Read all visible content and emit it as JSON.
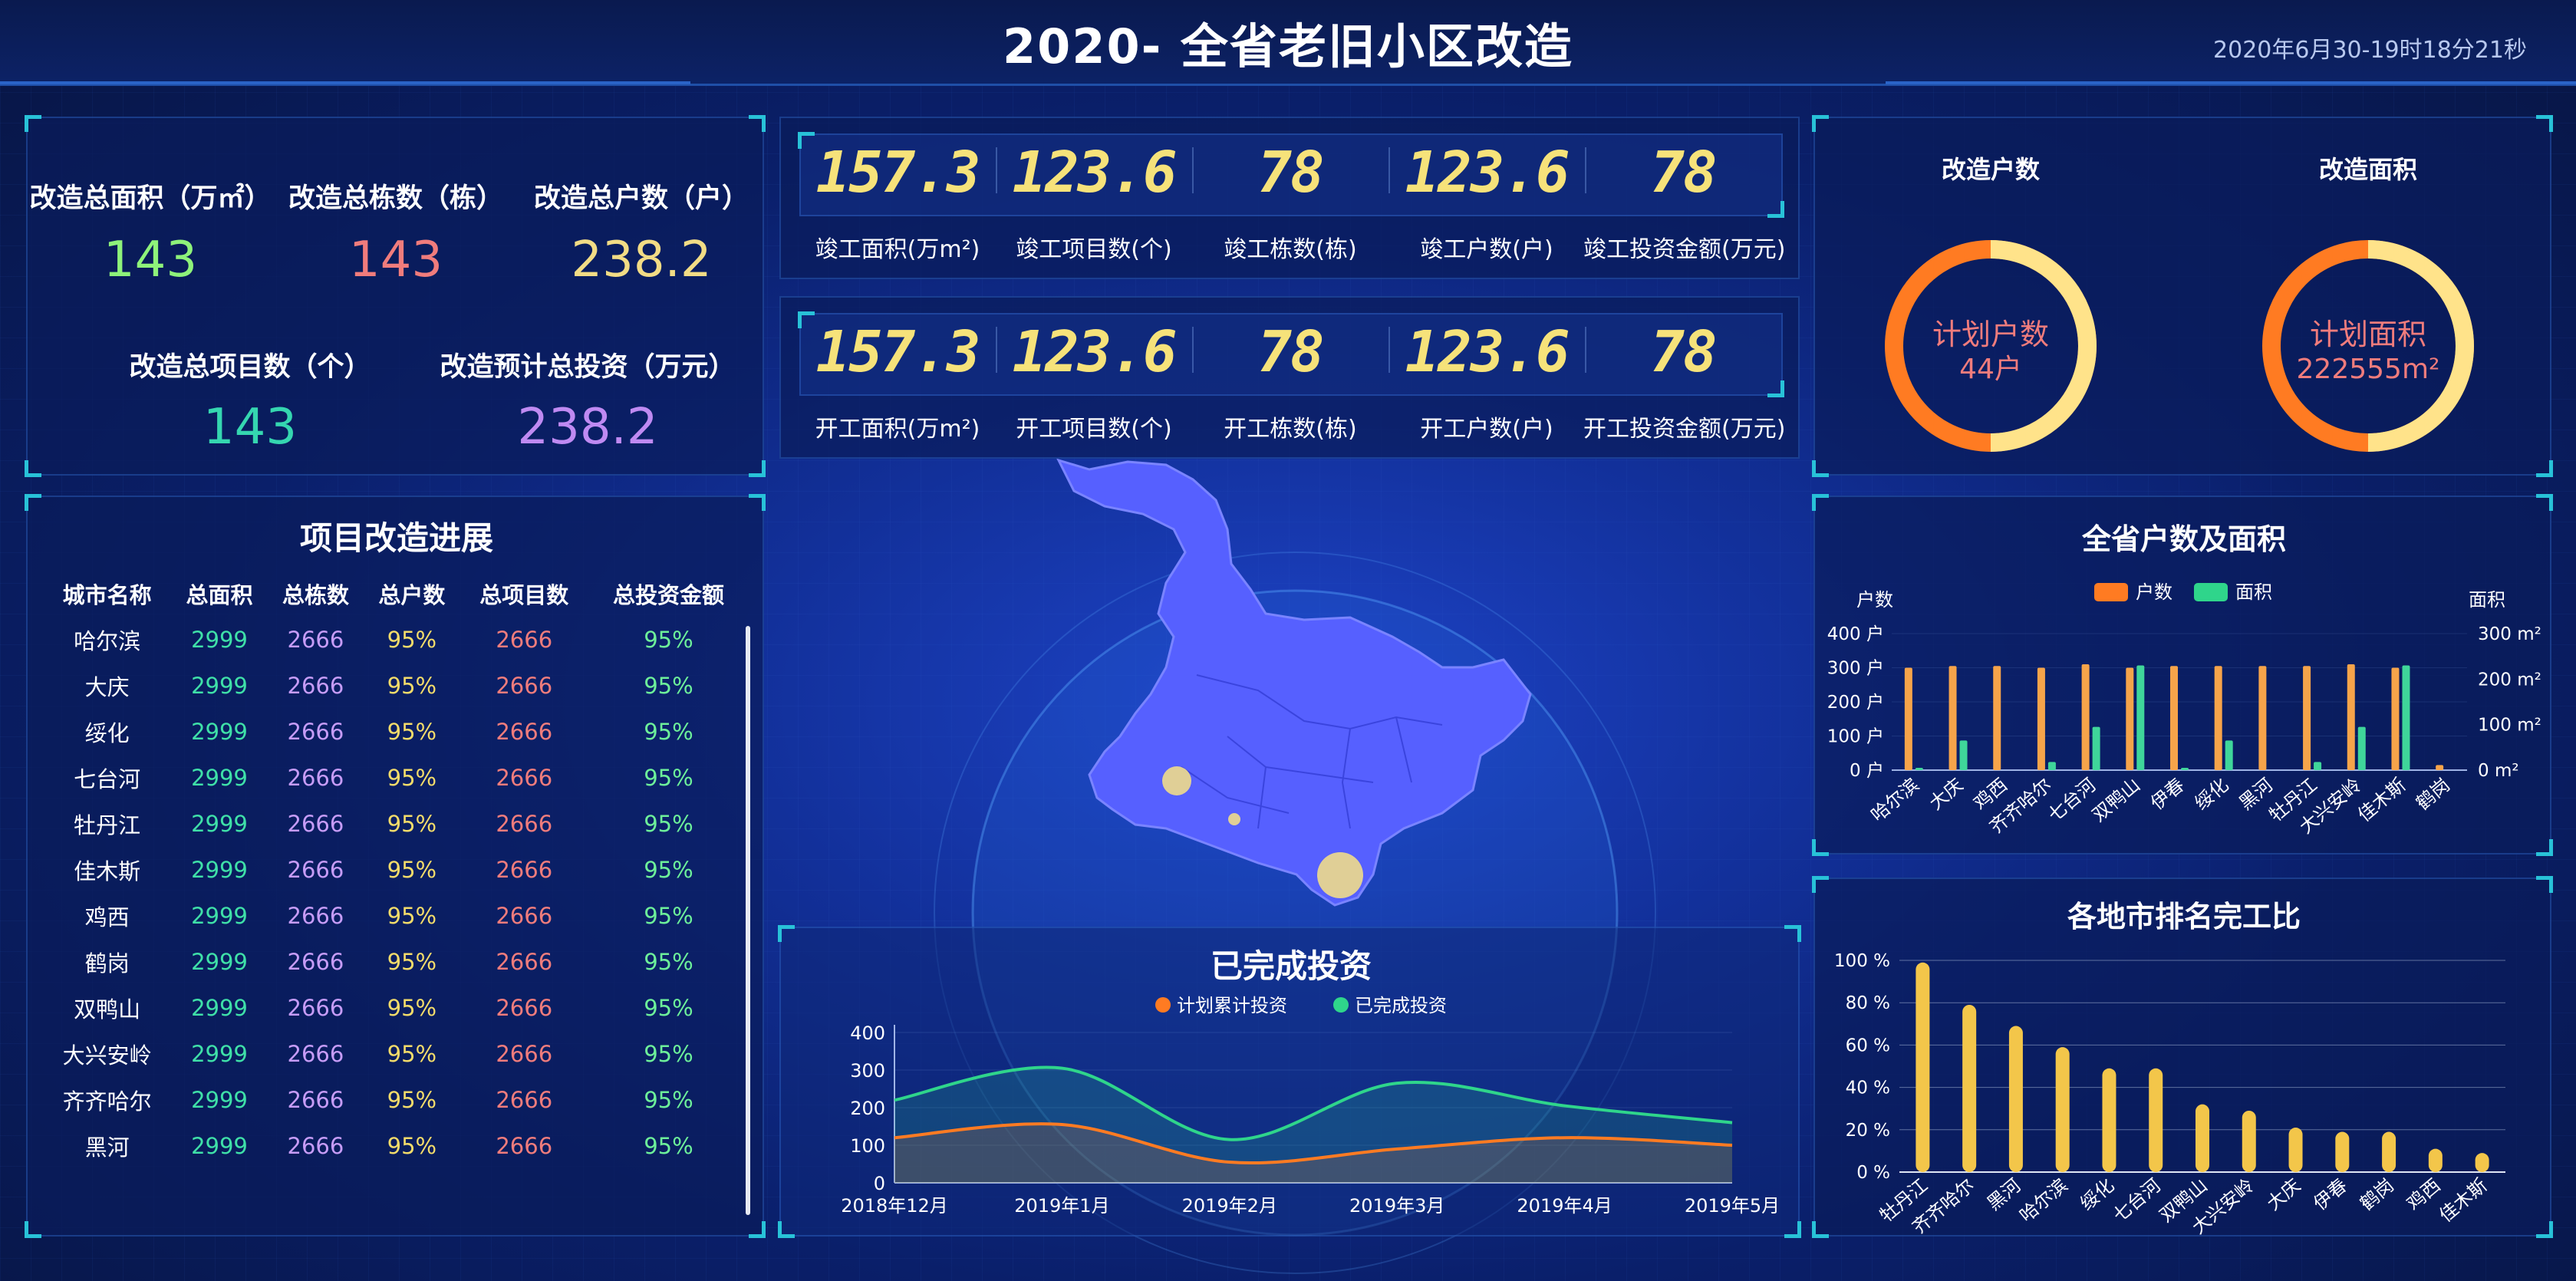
{
  "header": {
    "title": "2020- 全省老旧小区改造",
    "datetime": "2020年6月30-19时18分21秒"
  },
  "summary": {
    "total_area": {
      "label": "改造总面积（万㎡）",
      "value": "143"
    },
    "total_buildings": {
      "label": "改造总栋数（栋）",
      "value": "143"
    },
    "total_households": {
      "label": "改造总户数（户）",
      "value": "238.2"
    },
    "total_projects": {
      "label": "改造总项目数（个）",
      "value": "143"
    },
    "total_investment": {
      "label": "改造预计总投资（万元）",
      "value": "238.2"
    }
  },
  "completed_strip": [
    {
      "value": "157.3",
      "label": "竣工面积(万m²)"
    },
    {
      "value": "123.6",
      "label": "竣工项目数(个)"
    },
    {
      "value": "78",
      "label": "竣工栋数(栋)"
    },
    {
      "value": "123.6",
      "label": "竣工户数(户)"
    },
    {
      "value": "78",
      "label": "竣工投资金额(万元)"
    }
  ],
  "started_strip": [
    {
      "value": "157.3",
      "label": "开工面积(万m²)"
    },
    {
      "value": "123.6",
      "label": "开工项目数(个)"
    },
    {
      "value": "78",
      "label": "开工栋数(栋)"
    },
    {
      "value": "123.6",
      "label": "开工户数(户)"
    },
    {
      "value": "78",
      "label": "开工投资金额(万元)"
    }
  ],
  "progress_table": {
    "title": "项目改造进展",
    "headers": [
      "城市名称",
      "总面积",
      "总栋数",
      "总户数",
      "总项目数",
      "总投资金额"
    ],
    "rows": [
      [
        "哈尔滨",
        "2999",
        "2666",
        "95%",
        "2666",
        "95%"
      ],
      [
        "大庆",
        "2999",
        "2666",
        "95%",
        "2666",
        "95%"
      ],
      [
        "绥化",
        "2999",
        "2666",
        "95%",
        "2666",
        "95%"
      ],
      [
        "七台河",
        "2999",
        "2666",
        "95%",
        "2666",
        "95%"
      ],
      [
        "牡丹江",
        "2999",
        "2666",
        "95%",
        "2666",
        "95%"
      ],
      [
        "佳木斯",
        "2999",
        "2666",
        "95%",
        "2666",
        "95%"
      ],
      [
        "鸡西",
        "2999",
        "2666",
        "95%",
        "2666",
        "95%"
      ],
      [
        "鹤岗",
        "2999",
        "2666",
        "95%",
        "2666",
        "95%"
      ],
      [
        "双鸭山",
        "2999",
        "2666",
        "95%",
        "2666",
        "95%"
      ],
      [
        "大兴安岭",
        "2999",
        "2666",
        "95%",
        "2666",
        "95%"
      ],
      [
        "齐齐哈尔",
        "2999",
        "2666",
        "95%",
        "2666",
        "95%"
      ],
      [
        "黑河",
        "2999",
        "2666",
        "95%",
        "2666",
        "95%"
      ]
    ]
  },
  "donuts": [
    {
      "title": "改造户数",
      "inner_label": "计划户数",
      "inner_value": "44户",
      "fraction": 0.5
    },
    {
      "title": "改造面积",
      "inner_label": "计划面积",
      "inner_value": "222555m²",
      "fraction": 0.5
    }
  ],
  "colors": {
    "accent": "#28c2d8",
    "orange": "#ff7b22",
    "yellow": "#ffe38a",
    "green": "#2fd58b",
    "gold": "#f3c64a"
  },
  "chart_data": [
    {
      "type": "line",
      "title": "已完成投资",
      "x": [
        "2018年12月",
        "2019年1月",
        "2019年2月",
        "2019年3月",
        "2019年4月",
        "2019年5月"
      ],
      "ylim": [
        0,
        400
      ],
      "yticks": [
        "0",
        "100",
        "200",
        "300",
        "400"
      ],
      "series": [
        {
          "name": "计划累计投资",
          "values": [
            120,
            155,
            55,
            90,
            120,
            100
          ]
        },
        {
          "name": "已完成投资",
          "values": [
            220,
            305,
            115,
            265,
            205,
            160
          ]
        }
      ]
    },
    {
      "type": "bar",
      "title": "全省户数及面积",
      "categories": [
        "哈尔滨",
        "大庆",
        "鸡西",
        "齐齐哈尔",
        "七台河",
        "双鸭山",
        "伊春",
        "绥化",
        "黑河",
        "牡丹江",
        "大兴安岭",
        "佳木斯",
        "鹤岗"
      ],
      "ylabel": "户数",
      "ylabel_right": "面积",
      "yticks_left": [
        "0 户",
        "100 户",
        "200 户",
        "300 户",
        "400 户"
      ],
      "yticks_right": [
        "0 m²",
        "100 m²",
        "200 m²",
        "300 m²"
      ],
      "ylim": [
        0,
        400
      ],
      "ylim_right": [
        0,
        300
      ],
      "legend": "top",
      "series": [
        {
          "name": "户数",
          "values": [
            300,
            305,
            305,
            300,
            310,
            300,
            305,
            305,
            305,
            305,
            310,
            300,
            15
          ]
        },
        {
          "name": "面积",
          "values": [
            5,
            65,
            0,
            18,
            95,
            230,
            5,
            65,
            0,
            18,
            95,
            230,
            0
          ]
        }
      ]
    },
    {
      "type": "bar",
      "title": "各地市排名完工比",
      "categories": [
        "牡丹江",
        "齐齐哈尔",
        "黑河",
        "哈尔滨",
        "绥化",
        "七台河",
        "双鸭山",
        "大兴安岭",
        "大庆",
        "伊春",
        "鹤岗",
        "鸡西",
        "佳木斯"
      ],
      "ylim": [
        0,
        100
      ],
      "yticks": [
        "0 %",
        "20 %",
        "40 %",
        "60 %",
        "80 %",
        "100 %"
      ],
      "values": [
        99,
        79,
        69,
        59,
        49,
        49,
        32,
        29,
        21,
        19,
        19,
        11,
        9
      ]
    }
  ]
}
